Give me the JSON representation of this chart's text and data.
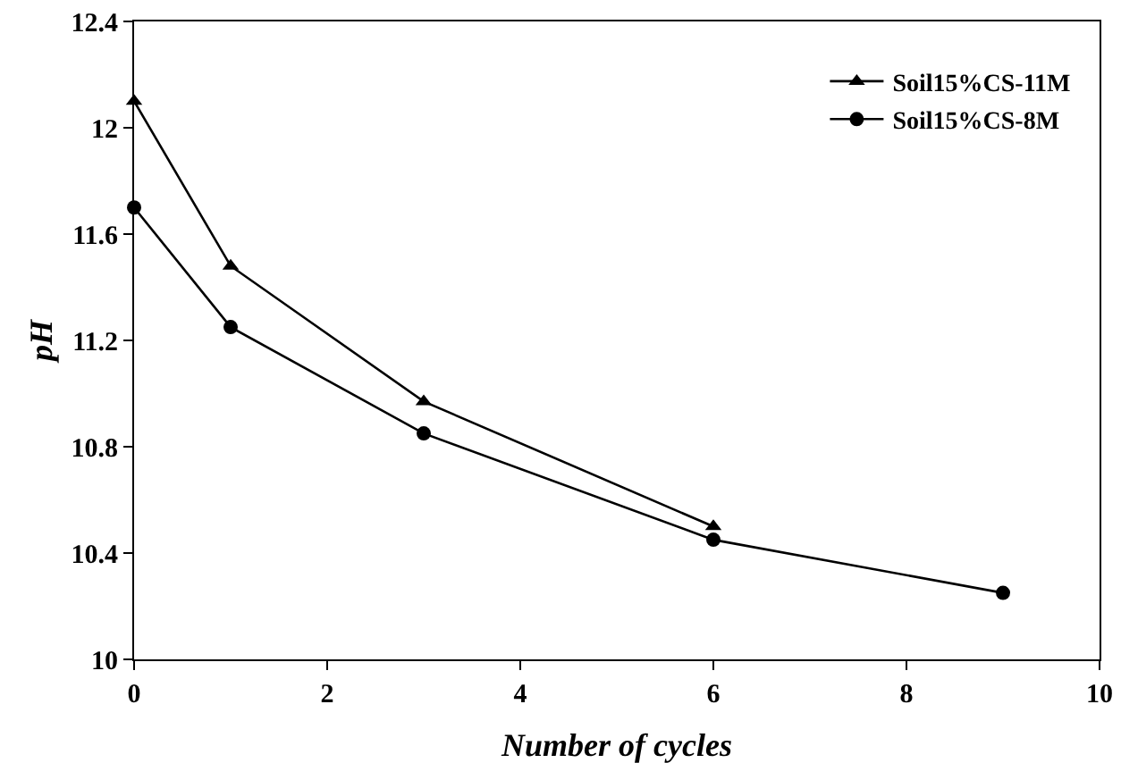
{
  "chart_data": {
    "type": "line",
    "xlabel": "Number of cycles",
    "ylabel": "pH",
    "xlim": [
      0,
      10
    ],
    "xticks": [
      0,
      2,
      4,
      6,
      8,
      10
    ],
    "ylim": [
      10,
      12.4
    ],
    "yticks": [
      10,
      10.4,
      10.8,
      11.2,
      11.6,
      12,
      12.4
    ],
    "grid": false,
    "legend": "top right",
    "line_style": "solid",
    "series": [
      {
        "name": "Soil15%CS-11M",
        "color": "#000000",
        "marker": "triangle",
        "x": [
          0,
          1,
          3,
          6
        ],
        "values": [
          12.1,
          11.48,
          10.97,
          10.5
        ]
      },
      {
        "name": "Soil15%CS-8M",
        "color": "#000000",
        "marker": "circle",
        "x": [
          0,
          1,
          3,
          6,
          9
        ],
        "values": [
          11.7,
          11.25,
          10.85,
          10.45,
          10.25
        ]
      }
    ]
  }
}
